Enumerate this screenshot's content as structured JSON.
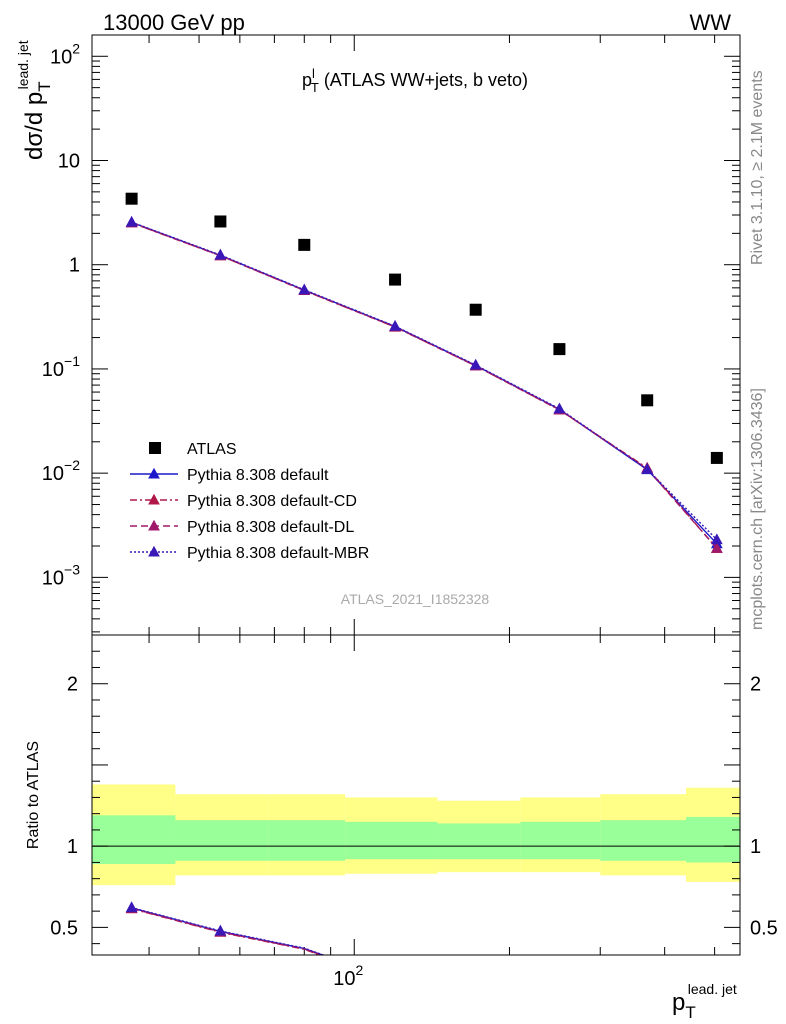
{
  "header": {
    "left": "13000 GeV pp",
    "right": "WW"
  },
  "side_text": {
    "rivet": "Rivet 3.1.10, ≥ 2.1M events",
    "mcplots": "mcplots.cern.ch [arXiv:1306.3436]"
  },
  "chart_data": [
    {
      "type": "scatter",
      "panel": "main",
      "title": {
        "sym": "p",
        "sup": "l",
        "sub": "T",
        "rest": " (ATLAS WW+jets, b veto)"
      },
      "ylabel": {
        "base": "dσ/d p",
        "sub": "T",
        "sup": "lead. jet"
      },
      "xlabel": {
        "base": "p",
        "sub": "T",
        "sup": "lead. jet"
      },
      "watermark": "ATLAS_2021_I1852328",
      "x_scale": "log",
      "y_scale": "log",
      "xlim": [
        31,
        560
      ],
      "ylim": [
        0.00028,
        160
      ],
      "x_bin_edges": [
        31,
        45,
        68,
        96,
        145,
        210,
        300,
        440,
        560
      ],
      "x": [
        37,
        55,
        80,
        120,
        172,
        250,
        370,
        505
      ],
      "y_ticks": [
        {
          "value": 100,
          "base": "10",
          "exp": "2"
        },
        {
          "value": 10,
          "base": "10",
          "exp": ""
        },
        {
          "value": 1,
          "base": "1",
          "exp": ""
        },
        {
          "value": 0.1,
          "base": "10",
          "exp": "−1"
        },
        {
          "value": 0.01,
          "base": "10",
          "exp": "−2"
        },
        {
          "value": 0.001,
          "base": "10",
          "exp": "−3"
        }
      ],
      "series": [
        {
          "name": "ATLAS",
          "style": "data",
          "color": "#000000",
          "values": [
            4.3,
            2.6,
            1.55,
            0.72,
            0.37,
            0.155,
            0.05,
            0.014
          ]
        },
        {
          "name": "Pythia 8.308 default",
          "style": "solid",
          "color": "#1a1acc",
          "values": [
            2.55,
            1.23,
            0.57,
            0.255,
            0.108,
            0.041,
            0.0108,
            0.0021
          ]
        },
        {
          "name": "Pythia 8.308 default-CD",
          "style": "dashdot",
          "color": "#b0184a",
          "values": [
            2.52,
            1.22,
            0.565,
            0.252,
            0.107,
            0.0405,
            0.0112,
            0.0019
          ]
        },
        {
          "name": "Pythia 8.308 default-DL",
          "style": "dashed",
          "color": "#a0186a",
          "values": [
            2.53,
            1.22,
            0.566,
            0.253,
            0.107,
            0.0405,
            0.011,
            0.0019
          ]
        },
        {
          "name": "Pythia 8.308 default-MBR",
          "style": "dotted",
          "color": "#3a18b8",
          "values": [
            2.56,
            1.24,
            0.575,
            0.257,
            0.109,
            0.0415,
            0.0109,
            0.0023
          ]
        }
      ],
      "legend_position": "lower-left"
    },
    {
      "type": "line",
      "panel": "ratio",
      "ylabel": "Ratio to ATLAS",
      "x_scale": "log",
      "xlim": [
        31,
        560
      ],
      "ylim": [
        0.33,
        2.3
      ],
      "y_ticks": [
        {
          "value": 2,
          "label": "2"
        },
        {
          "value": 1,
          "label": "1"
        },
        {
          "value": 0.5,
          "label": "0.5"
        }
      ],
      "x_ticks": [
        {
          "value": 100,
          "base": "10",
          "exp": "2"
        }
      ],
      "uncertainty_bands": {
        "x_bin_edges": [
          31,
          45,
          68,
          96,
          145,
          210,
          300,
          440,
          560
        ],
        "outer": {
          "color": "#ffff88",
          "lower": [
            0.76,
            0.82,
            0.82,
            0.83,
            0.84,
            0.84,
            0.82,
            0.78
          ],
          "upper": [
            1.38,
            1.32,
            1.32,
            1.3,
            1.28,
            1.3,
            1.32,
            1.36
          ]
        },
        "inner": {
          "color": "#99ff99",
          "lower": [
            0.89,
            0.91,
            0.91,
            0.92,
            0.92,
            0.92,
            0.91,
            0.9
          ],
          "upper": [
            1.19,
            1.16,
            1.16,
            1.15,
            1.14,
            1.15,
            1.16,
            1.18
          ]
        }
      },
      "series": [
        {
          "name": "Pythia 8.308 default",
          "color": "#1a1acc",
          "values": [
            0.62,
            0.475,
            0.37
          ]
        },
        {
          "name": "Pythia 8.308 default-CD",
          "color": "#b0184a",
          "values": [
            0.615,
            0.47,
            0.365
          ]
        },
        {
          "name": "Pythia 8.308 default-DL",
          "color": "#a0186a",
          "values": [
            0.617,
            0.472,
            0.367
          ]
        },
        {
          "name": "Pythia 8.308 default-MBR",
          "color": "#3a18b8",
          "values": [
            0.622,
            0.478,
            0.372
          ]
        }
      ]
    }
  ]
}
